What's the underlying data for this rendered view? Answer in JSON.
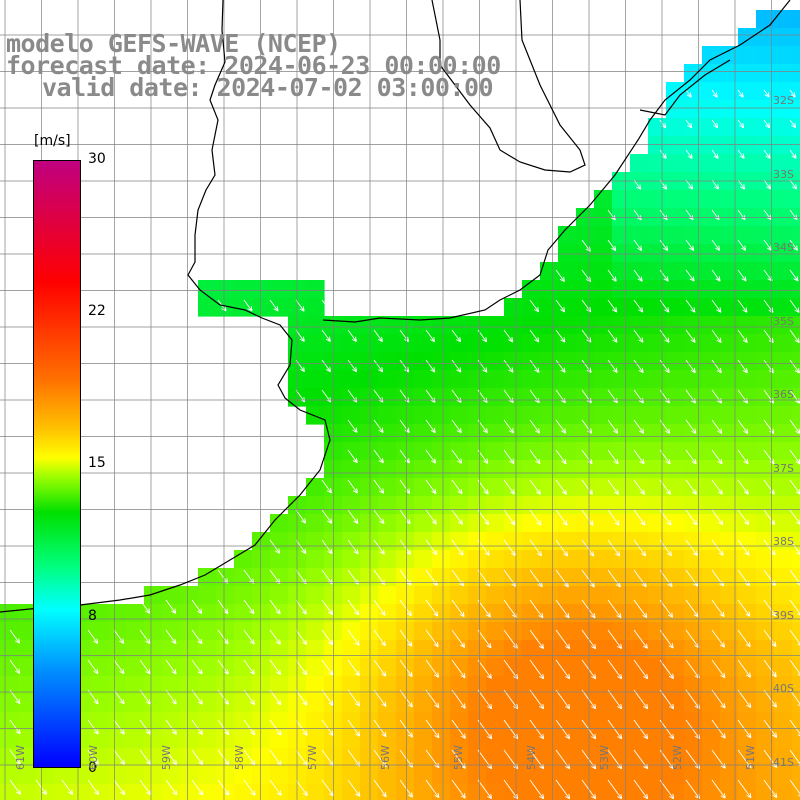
{
  "title": {
    "model": "modelo GEFS-WAVE (NCEP)",
    "forecast": "forecast date: 2024-06-23 00:00:00",
    "valid": "valid date: 2024-07-02 03:00:00"
  },
  "colorbar": {
    "unit": "[m/s]",
    "ticks": [
      "30",
      "22",
      "15",
      "8",
      "0"
    ],
    "tick_values": [
      30,
      22,
      15,
      8,
      0
    ],
    "colors": [
      "#0000ff",
      "#0090ff",
      "#00ffff",
      "#00ff80",
      "#00e000",
      "#a0ff00",
      "#ffff00",
      "#ffc000",
      "#ff7000",
      "#ff0000",
      "#c00080"
    ]
  },
  "axes": {
    "lon_labels": [
      "61W",
      "60W",
      "59W",
      "58W",
      "57W",
      "56W",
      "55W",
      "54W",
      "53W",
      "52W",
      "51W"
    ],
    "lat_labels": [
      "32S",
      "33S",
      "34S",
      "35S",
      "36S",
      "37S",
      "38S",
      "39S",
      "40S",
      "41S"
    ]
  },
  "colors": {
    "land": "#ffffff",
    "coast": "#000000",
    "grid": "#808080",
    "arrow": "#ffffff"
  }
}
